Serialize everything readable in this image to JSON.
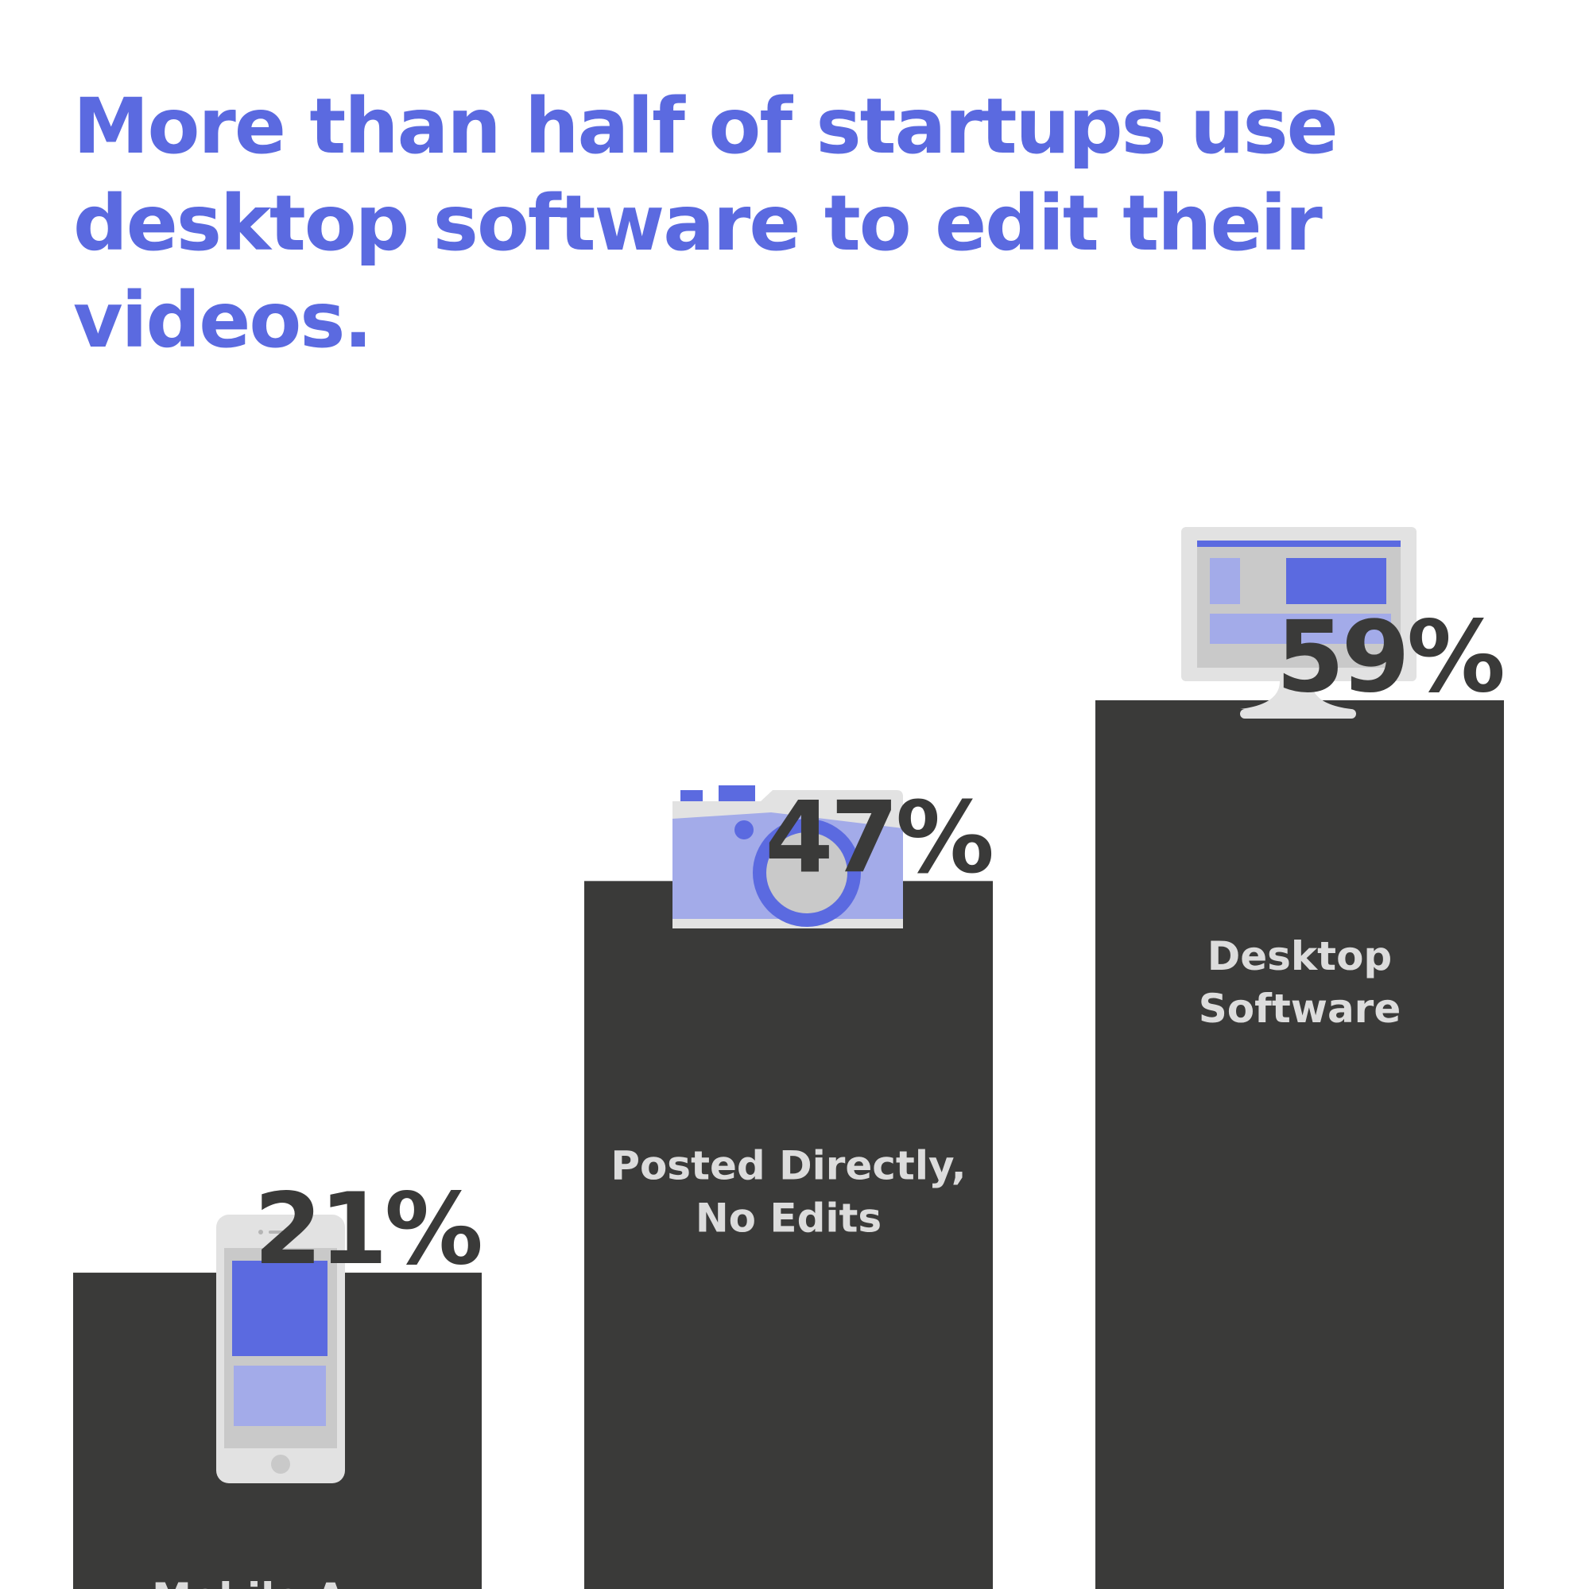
{
  "colors": {
    "title": "#5b6ae0",
    "bar": "#3a3a39",
    "value_label": "#3a3a39",
    "category_label": "#dcdcdc",
    "icon_light": "#e2e2e2",
    "icon_gray": "#c9c9c9",
    "icon_blue": "#5b6ae0",
    "icon_lavender": "#a3abe9"
  },
  "title": {
    "line1": "More than half of startups use",
    "line2": "desktop software to edit their videos."
  },
  "chart_data": {
    "type": "bar",
    "title": "More than half of startups use desktop software to edit their videos.",
    "categories": [
      "Mobile App",
      "Posted Directly, No Edits",
      "Desktop Software"
    ],
    "category_label_lines": [
      [
        "Mobile App"
      ],
      [
        "Posted Directly,",
        "No Edits"
      ],
      [
        "Desktop",
        "Software"
      ]
    ],
    "values": [
      21,
      47,
      59
    ],
    "value_labels": [
      "21%",
      "47%",
      "59%"
    ],
    "icons": [
      "mobile-phone-icon",
      "camera-icon",
      "desktop-monitor-icon"
    ],
    "xlabel": "",
    "ylabel": "",
    "grid": false,
    "legend": "none"
  }
}
